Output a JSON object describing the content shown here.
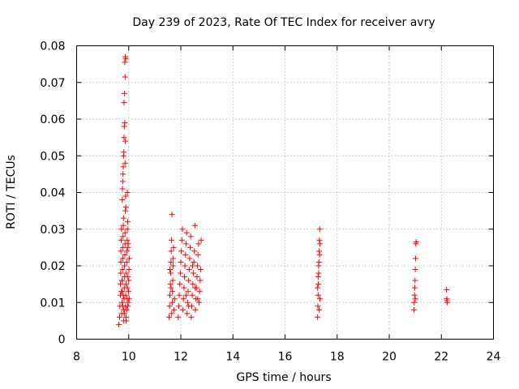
{
  "chart_data": {
    "type": "scatter",
    "title": "Day 239 of 2023, Rate Of TEC Index for receiver avry",
    "xlabel": "GPS time / hours",
    "ylabel": "ROTI / TECUs",
    "xlim": [
      8,
      24
    ],
    "ylim": [
      0,
      0.08
    ],
    "x_ticks": [
      8,
      10,
      12,
      14,
      16,
      18,
      20,
      22,
      24
    ],
    "x_tick_labels": [
      "8",
      "10",
      "12",
      "14",
      "16",
      "18",
      "20",
      "22",
      "24"
    ],
    "y_ticks": [
      0,
      0.01,
      0.02,
      0.03,
      0.04,
      0.05,
      0.06,
      0.07,
      0.08
    ],
    "y_tick_labels": [
      "0",
      "0.01",
      "0.02",
      "0.03",
      "0.04",
      "0.05",
      "0.06",
      "0.07",
      "0.08"
    ],
    "grid": true,
    "marker": "+",
    "marker_color": "#ff0000",
    "series": [
      {
        "name": "ROTI",
        "points": [
          [
            9.62,
            0.004
          ],
          [
            9.65,
            0.006
          ],
          [
            9.66,
            0.009
          ],
          [
            9.68,
            0.012
          ],
          [
            9.68,
            0.015
          ],
          [
            9.69,
            0.018
          ],
          [
            9.7,
            0.021
          ],
          [
            9.7,
            0.024
          ],
          [
            9.71,
            0.027
          ],
          [
            9.72,
            0.03
          ],
          [
            9.73,
            0.007
          ],
          [
            9.74,
            0.01
          ],
          [
            9.75,
            0.013
          ],
          [
            9.75,
            0.016
          ],
          [
            9.76,
            0.019
          ],
          [
            9.77,
            0.022
          ],
          [
            9.78,
            0.025
          ],
          [
            9.78,
            0.028
          ],
          [
            9.79,
            0.031
          ],
          [
            9.8,
            0.033
          ],
          [
            9.8,
            0.005
          ],
          [
            9.81,
            0.008
          ],
          [
            9.82,
            0.011
          ],
          [
            9.83,
            0.014
          ],
          [
            9.84,
            0.017
          ],
          [
            9.84,
            0.02
          ],
          [
            9.85,
            0.023
          ],
          [
            9.86,
            0.026
          ],
          [
            9.86,
            0.029
          ],
          [
            9.87,
            0.035
          ],
          [
            9.75,
            0.038
          ],
          [
            9.76,
            0.041
          ],
          [
            9.77,
            0.043
          ],
          [
            9.78,
            0.045
          ],
          [
            9.79,
            0.047
          ],
          [
            9.8,
            0.05
          ],
          [
            9.81,
            0.051
          ],
          [
            9.82,
            0.055
          ],
          [
            9.83,
            0.058
          ],
          [
            9.85,
            0.059
          ],
          [
            9.82,
            0.0645
          ],
          [
            9.84,
            0.067
          ],
          [
            9.86,
            0.0715
          ],
          [
            9.85,
            0.0755
          ],
          [
            9.87,
            0.077
          ],
          [
            9.88,
            0.0765
          ],
          [
            9.87,
            0.054
          ],
          [
            9.86,
            0.048
          ],
          [
            9.88,
            0.039
          ],
          [
            9.89,
            0.036
          ],
          [
            9.88,
            0.009
          ],
          [
            9.89,
            0.012
          ],
          [
            9.9,
            0.015
          ],
          [
            9.91,
            0.018
          ],
          [
            9.92,
            0.021
          ],
          [
            9.93,
            0.024
          ],
          [
            9.94,
            0.027
          ],
          [
            9.95,
            0.03
          ],
          [
            9.96,
            0.032
          ],
          [
            9.97,
            0.025
          ],
          [
            9.9,
            0.006
          ],
          [
            9.92,
            0.008
          ],
          [
            9.94,
            0.011
          ],
          [
            9.95,
            0.014
          ],
          [
            9.97,
            0.017
          ],
          [
            9.98,
            0.01
          ],
          [
            9.99,
            0.013
          ],
          [
            10.0,
            0.016
          ],
          [
            10.01,
            0.019
          ],
          [
            10.02,
            0.022
          ],
          [
            9.95,
            0.04
          ],
          [
            9.98,
            0.026
          ],
          [
            9.72,
            0.013
          ],
          [
            9.74,
            0.016
          ],
          [
            9.77,
            0.009
          ],
          [
            9.79,
            0.012
          ],
          [
            9.83,
            0.007
          ],
          [
            9.9,
            0.005
          ],
          [
            9.96,
            0.009
          ],
          [
            10.02,
            0.011
          ],
          [
            11.55,
            0.006
          ],
          [
            11.57,
            0.009
          ],
          [
            11.58,
            0.012
          ],
          [
            11.6,
            0.015
          ],
          [
            11.61,
            0.018
          ],
          [
            11.62,
            0.021
          ],
          [
            11.63,
            0.024
          ],
          [
            11.64,
            0.027
          ],
          [
            11.66,
            0.034
          ],
          [
            11.67,
            0.01
          ],
          [
            11.68,
            0.013
          ],
          [
            11.69,
            0.016
          ],
          [
            11.7,
            0.02
          ],
          [
            11.72,
            0.025
          ],
          [
            11.74,
            0.008
          ],
          [
            11.76,
            0.011
          ],
          [
            11.58,
            0.019
          ],
          [
            11.62,
            0.014
          ],
          [
            11.65,
            0.007
          ],
          [
            11.7,
            0.022
          ],
          [
            11.9,
            0.006
          ],
          [
            11.92,
            0.009
          ],
          [
            11.94,
            0.012
          ],
          [
            11.96,
            0.015
          ],
          [
            11.98,
            0.018
          ],
          [
            12.0,
            0.021
          ],
          [
            12.02,
            0.024
          ],
          [
            12.04,
            0.027
          ],
          [
            12.06,
            0.03
          ],
          [
            12.08,
            0.008
          ],
          [
            12.1,
            0.011
          ],
          [
            12.12,
            0.014
          ],
          [
            12.14,
            0.017
          ],
          [
            12.16,
            0.02
          ],
          [
            12.18,
            0.023
          ],
          [
            12.2,
            0.026
          ],
          [
            12.22,
            0.029
          ],
          [
            12.24,
            0.007
          ],
          [
            12.26,
            0.01
          ],
          [
            12.28,
            0.013
          ],
          [
            12.3,
            0.016
          ],
          [
            12.32,
            0.019
          ],
          [
            12.34,
            0.022
          ],
          [
            12.36,
            0.025
          ],
          [
            12.38,
            0.028
          ],
          [
            12.4,
            0.006
          ],
          [
            12.42,
            0.009
          ],
          [
            12.44,
            0.012
          ],
          [
            12.46,
            0.015
          ],
          [
            12.48,
            0.018
          ],
          [
            12.5,
            0.021
          ],
          [
            12.52,
            0.024
          ],
          [
            12.54,
            0.031
          ],
          [
            12.56,
            0.008
          ],
          [
            12.58,
            0.011
          ],
          [
            12.6,
            0.014
          ],
          [
            12.62,
            0.017
          ],
          [
            12.64,
            0.02
          ],
          [
            12.66,
            0.023
          ],
          [
            12.68,
            0.026
          ],
          [
            12.7,
            0.01
          ],
          [
            12.72,
            0.013
          ],
          [
            12.74,
            0.016
          ],
          [
            12.76,
            0.019
          ],
          [
            12.78,
            0.027
          ],
          [
            12.2,
            0.012
          ],
          [
            12.3,
            0.009
          ],
          [
            12.45,
            0.02
          ],
          [
            12.55,
            0.014
          ],
          [
            12.65,
            0.011
          ],
          [
            17.25,
            0.006
          ],
          [
            17.26,
            0.009
          ],
          [
            17.27,
            0.012
          ],
          [
            17.28,
            0.015
          ],
          [
            17.29,
            0.018
          ],
          [
            17.3,
            0.021
          ],
          [
            17.31,
            0.024
          ],
          [
            17.32,
            0.027
          ],
          [
            17.33,
            0.03
          ],
          [
            17.34,
            0.011
          ],
          [
            17.25,
            0.014
          ],
          [
            17.27,
            0.017
          ],
          [
            17.29,
            0.02
          ],
          [
            17.31,
            0.008
          ],
          [
            17.33,
            0.023
          ],
          [
            17.34,
            0.026
          ],
          [
            20.95,
            0.008
          ],
          [
            20.96,
            0.01
          ],
          [
            20.97,
            0.012
          ],
          [
            20.98,
            0.014
          ],
          [
            20.99,
            0.016
          ],
          [
            21.0,
            0.019
          ],
          [
            21.01,
            0.022
          ],
          [
            21.02,
            0.026
          ],
          [
            21.03,
            0.0265
          ],
          [
            21.0,
            0.011
          ],
          [
            22.2,
            0.0135
          ],
          [
            22.21,
            0.011
          ],
          [
            22.22,
            0.0105
          ],
          [
            22.23,
            0.01
          ]
        ]
      }
    ]
  }
}
